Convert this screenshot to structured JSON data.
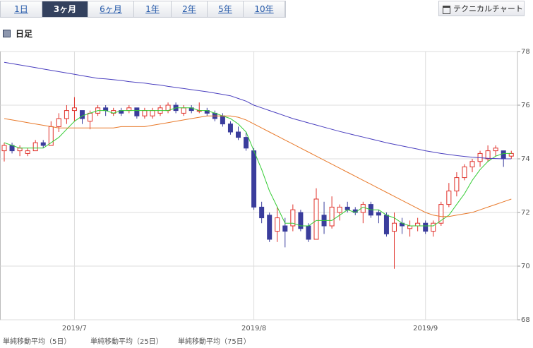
{
  "tabs": [
    "1日",
    "3ヶ月",
    "6ヶ月",
    "1年",
    "2年",
    "5年",
    "10年"
  ],
  "active_tab": 1,
  "button": "テクニカルチャート",
  "chart_data": {
    "type": "candlestick",
    "title": "日足",
    "categories": [
      null,
      null,
      null,
      null,
      null,
      null,
      null,
      null,
      null,
      "2019/7",
      null,
      null,
      null,
      null,
      null,
      null,
      null,
      null,
      null,
      null,
      null,
      null,
      null,
      null,
      null,
      null,
      null,
      null,
      null,
      null,
      null,
      null,
      "2019/8",
      null,
      null,
      null,
      null,
      null,
      null,
      null,
      null,
      null,
      null,
      null,
      null,
      null,
      null,
      null,
      null,
      null,
      null,
      null,
      null,
      null,
      "2019/9",
      null,
      null,
      null,
      null,
      null,
      null,
      null,
      null,
      null,
      null,
      null
    ],
    "open": [
      74.3,
      74.5,
      74.3,
      74.2,
      74.3,
      74.6,
      74.5,
      75.2,
      75.5,
      75.8,
      75.8,
      75.4,
      75.7,
      75.9,
      75.7,
      75.8,
      75.8,
      75.9,
      75.6,
      75.6,
      75.7,
      75.8,
      76.0,
      75.7,
      75.9,
      75.8,
      75.8,
      75.7,
      75.6,
      75.3,
      75.0,
      74.8,
      74.3,
      72.2,
      71.9,
      71.3,
      71.5,
      71.5,
      72.0,
      71.5,
      71.0,
      71.9,
      71.5,
      72.0,
      72.2,
      72.1,
      72.0,
      72.3,
      72.0,
      71.9,
      71.3,
      71.6,
      71.4,
      71.5,
      71.6,
      71.3,
      71.6,
      72.3,
      72.8,
      73.3,
      73.7,
      73.9,
      74.0,
      74.3,
      74.3,
      74.1
    ],
    "high": [
      74.6,
      74.6,
      74.5,
      74.4,
      74.7,
      74.7,
      75.4,
      75.7,
      76.0,
      76.3,
      75.8,
      75.8,
      76.0,
      76.0,
      75.9,
      75.9,
      76.0,
      75.9,
      75.9,
      75.9,
      76.0,
      76.1,
      76.1,
      76.0,
      76.0,
      76.1,
      75.9,
      75.8,
      75.7,
      75.4,
      75.2,
      75.0,
      74.4,
      72.4,
      72.0,
      72.2,
      71.8,
      72.3,
      72.1,
      71.6,
      72.9,
      72.4,
      72.6,
      72.3,
      72.4,
      72.2,
      72.4,
      72.4,
      72.1,
      72.0,
      72.0,
      71.8,
      71.7,
      71.8,
      71.7,
      71.7,
      72.4,
      73.1,
      73.5,
      73.8,
      74.0,
      74.3,
      74.5,
      74.5,
      74.3,
      74.3
    ],
    "low": [
      73.9,
      74.2,
      74.1,
      74.1,
      74.3,
      74.4,
      74.5,
      75.0,
      75.3,
      75.4,
      75.3,
      75.1,
      75.6,
      75.6,
      75.6,
      75.6,
      75.7,
      75.5,
      75.5,
      75.5,
      75.6,
      75.7,
      75.7,
      75.6,
      75.7,
      75.7,
      75.6,
      75.4,
      75.2,
      74.9,
      74.7,
      74.3,
      72.1,
      71.6,
      70.9,
      70.9,
      70.7,
      71.3,
      71.3,
      70.9,
      71.0,
      71.2,
      71.4,
      71.7,
      72.0,
      71.9,
      71.6,
      71.8,
      71.6,
      71.1,
      69.9,
      71.2,
      71.1,
      71.3,
      71.2,
      71.1,
      71.5,
      72.2,
      72.6,
      73.2,
      73.5,
      73.7,
      73.9,
      74.1,
      73.7,
      74.0
    ],
    "close": [
      74.5,
      74.3,
      74.4,
      74.3,
      74.6,
      74.5,
      75.2,
      75.5,
      75.8,
      75.9,
      75.5,
      75.7,
      75.9,
      75.8,
      75.8,
      75.7,
      75.9,
      75.6,
      75.8,
      75.8,
      75.9,
      76.0,
      75.8,
      75.9,
      75.8,
      75.8,
      75.7,
      75.5,
      75.3,
      75.0,
      74.8,
      74.4,
      72.2,
      71.8,
      71.0,
      71.8,
      71.3,
      72.1,
      71.4,
      71.0,
      72.5,
      71.5,
      72.2,
      72.2,
      72.1,
      72.0,
      72.3,
      71.9,
      71.9,
      71.2,
      71.6,
      71.5,
      71.5,
      71.6,
      71.3,
      71.6,
      72.3,
      72.8,
      73.3,
      73.7,
      73.9,
      74.2,
      74.3,
      74.4,
      74.0,
      74.2
    ],
    "up_color": "#e0312a",
    "down_color": "#3a3d9c",
    "series": [
      {
        "name": "単純移動平均（5日）",
        "color": "#33cc33",
        "values": [
          74.6,
          74.5,
          74.4,
          74.4,
          74.4,
          74.4,
          74.6,
          74.8,
          75.1,
          75.4,
          75.6,
          75.7,
          75.8,
          75.8,
          75.7,
          75.8,
          75.8,
          75.8,
          75.8,
          75.8,
          75.8,
          75.8,
          75.9,
          75.9,
          75.9,
          75.8,
          75.8,
          75.7,
          75.6,
          75.5,
          75.3,
          75.0,
          74.3,
          73.6,
          72.8,
          72.2,
          71.6,
          71.6,
          71.5,
          71.5,
          71.7,
          71.7,
          71.7,
          71.9,
          72.1,
          72.0,
          72.2,
          72.1,
          72.1,
          71.9,
          71.8,
          71.6,
          71.5,
          71.5,
          71.5,
          71.5,
          71.7,
          71.9,
          72.3,
          72.7,
          73.2,
          73.6,
          73.9,
          74.1,
          74.2,
          74.2
        ]
      },
      {
        "name": "単純移動平均（25日）",
        "color": "#e8792a",
        "values": [
          75.5,
          75.45,
          75.4,
          75.35,
          75.3,
          75.25,
          75.2,
          75.15,
          75.15,
          75.15,
          75.15,
          75.15,
          75.15,
          75.15,
          75.15,
          75.2,
          75.2,
          75.2,
          75.2,
          75.25,
          75.3,
          75.35,
          75.4,
          75.45,
          75.5,
          75.55,
          75.6,
          75.6,
          75.6,
          75.6,
          75.55,
          75.45,
          75.3,
          75.15,
          75.0,
          74.85,
          74.7,
          74.55,
          74.4,
          74.25,
          74.1,
          73.95,
          73.8,
          73.65,
          73.5,
          73.35,
          73.2,
          73.05,
          72.9,
          72.75,
          72.6,
          72.45,
          72.3,
          72.15,
          72.0,
          71.9,
          71.85,
          71.85,
          71.9,
          71.95,
          72.0,
          72.1,
          72.2,
          72.3,
          72.4,
          72.5
        ]
      },
      {
        "name": "単純移動平均（75日）",
        "color": "#4a3fbf",
        "values": [
          77.6,
          77.55,
          77.5,
          77.45,
          77.4,
          77.35,
          77.3,
          77.25,
          77.2,
          77.15,
          77.1,
          77.05,
          77.0,
          76.98,
          76.95,
          76.92,
          76.88,
          76.85,
          76.82,
          76.78,
          76.75,
          76.7,
          76.66,
          76.62,
          76.58,
          76.54,
          76.5,
          76.45,
          76.4,
          76.35,
          76.25,
          76.15,
          76.0,
          75.9,
          75.8,
          75.7,
          75.6,
          75.5,
          75.42,
          75.34,
          75.26,
          75.18,
          75.1,
          75.02,
          74.95,
          74.88,
          74.81,
          74.74,
          74.67,
          74.6,
          74.54,
          74.48,
          74.42,
          74.36,
          74.3,
          74.25,
          74.2,
          74.16,
          74.12,
          74.09,
          74.06,
          74.04,
          74.02,
          74.01,
          74.0,
          74.0
        ]
      }
    ],
    "ylim": [
      68,
      78
    ],
    "yticks": [
      68,
      70,
      72,
      74,
      76,
      78
    ],
    "grid": true
  }
}
